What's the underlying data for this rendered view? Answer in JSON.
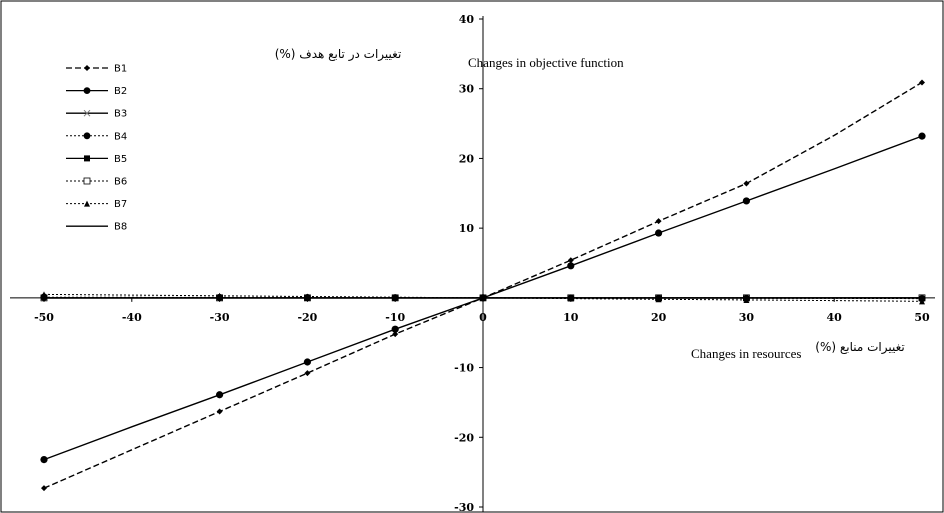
{
  "chart_data": {
    "type": "line",
    "x": [
      -50,
      -40,
      -30,
      -20,
      -10,
      0,
      10,
      20,
      30,
      40,
      50
    ],
    "xticks": [
      -50,
      -40,
      -30,
      -20,
      -10,
      0,
      10,
      20,
      30,
      40,
      50
    ],
    "yticks": [
      -30,
      -20,
      -10,
      0,
      10,
      20,
      30,
      40
    ],
    "xlim": [
      -50,
      50
    ],
    "ylim": [
      -30,
      40
    ],
    "xlabel_fa": "تغییرات منابع (%)",
    "xlabel_en": "Changes in resources",
    "ylabel_fa": "تغییرات در تابع هدف (%)",
    "ylabel_en": "Changes in objective function",
    "legend_position": "top-left",
    "grid": false,
    "series": [
      {
        "name": "B1",
        "values": [
          -27.3,
          -21.8,
          -16.3,
          -10.8,
          -5.2,
          0,
          5.4,
          11.0,
          16.4,
          23.3,
          30.9
        ],
        "style": "dashed",
        "marker": "diamond"
      },
      {
        "name": "B2",
        "values": [
          -23.2,
          -18.5,
          -13.9,
          -9.2,
          -4.5,
          0,
          4.6,
          9.3,
          13.9,
          18.5,
          23.2
        ],
        "style": "solid",
        "marker": "circle"
      },
      {
        "name": "B3",
        "values": [
          0,
          0,
          0,
          0,
          0,
          0,
          0,
          0,
          0,
          0,
          0
        ],
        "style": "solid",
        "marker": "x"
      },
      {
        "name": "B4",
        "values": [
          0.1,
          0.08,
          0.06,
          0.04,
          0.02,
          0,
          -0.02,
          -0.04,
          -0.06,
          -0.08,
          -0.1
        ],
        "style": "dotted",
        "marker": "circle"
      },
      {
        "name": "B5",
        "values": [
          0,
          0,
          0,
          0,
          0,
          0,
          0,
          0,
          0,
          0,
          0
        ],
        "style": "solid",
        "marker": "square"
      },
      {
        "name": "B6",
        "values": [
          0,
          0,
          0,
          0,
          0,
          0,
          0,
          0,
          0,
          0,
          0
        ],
        "style": "dotted",
        "marker": "open-square"
      },
      {
        "name": "B7",
        "values": [
          0.5,
          0.4,
          0.3,
          0.2,
          0.1,
          0,
          -0.1,
          -0.2,
          -0.3,
          -0.4,
          -0.5
        ],
        "style": "dotted",
        "marker": "triangle"
      },
      {
        "name": "B8",
        "values": [
          0,
          0,
          0,
          0,
          0,
          0,
          0,
          0,
          0,
          0,
          0
        ],
        "style": "solid",
        "marker": "none"
      }
    ]
  }
}
